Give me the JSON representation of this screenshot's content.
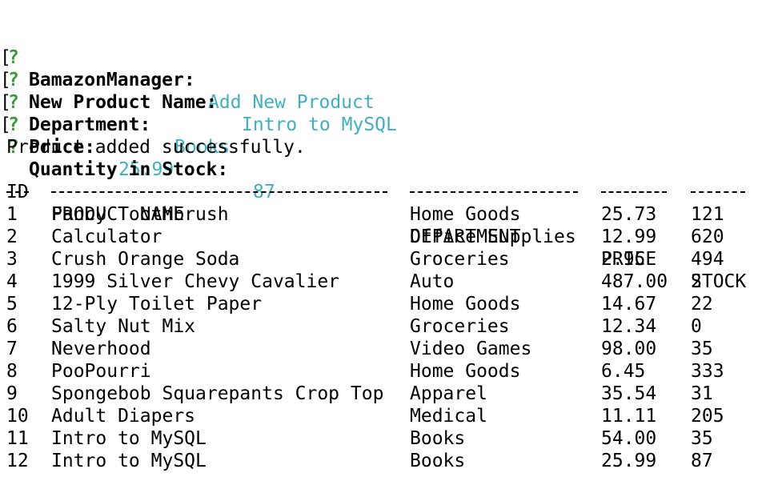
{
  "prompts": [
    {
      "bracket": "",
      "qmark": "?",
      "label": "BamazonManager:",
      "answer": "Add New Product"
    },
    {
      "bracket": "[",
      "qmark": "?",
      "label": "New Product Name:",
      "answer": "Intro to MySQL"
    },
    {
      "bracket": "[",
      "qmark": "?",
      "label": "Department:",
      "answer": "Books"
    },
    {
      "bracket": "[",
      "qmark": "?",
      "label": "Price:",
      "answer": "25.99"
    },
    {
      "bracket": "[",
      "qmark": "?",
      "label": "Quantity in Stock:",
      "answer": "87"
    }
  ],
  "status_message": "Product added successfully.",
  "table": {
    "headers": [
      "ID",
      "PRODUCT NAME",
      "DEPARTMENT",
      "PRICE",
      "STOCK"
    ],
    "separators": [
      "--",
      "------------------------------",
      "---------------",
      "------",
      "-----"
    ],
    "rows": [
      [
        "1",
        "Fancy Toothbrush",
        "Home Goods",
        "25.73",
        "121"
      ],
      [
        "2",
        "Calculator",
        "Office Supplies",
        "12.99",
        "620"
      ],
      [
        "3",
        "Crush Orange Soda",
        "Groceries",
        "2.95",
        "494"
      ],
      [
        "4",
        "1999 Silver Chevy Cavalier",
        "Auto",
        "487.00",
        "2"
      ],
      [
        "5",
        "12-Ply Toilet Paper",
        "Home Goods",
        "14.67",
        "22"
      ],
      [
        "6",
        "Salty Nut Mix",
        "Groceries",
        "12.34",
        "0"
      ],
      [
        "7",
        "Neverhood",
        "Video Games",
        "98.00",
        "35"
      ],
      [
        "8",
        "PooPourri",
        "Home Goods",
        "6.45",
        "333"
      ],
      [
        "9",
        "Spongebob Squarepants Crop Top",
        "Apparel",
        "35.54",
        "31"
      ],
      [
        "10",
        "Adult Diapers",
        "Medical",
        "11.11",
        "205"
      ],
      [
        "11",
        "Intro to MySQL",
        "Books",
        "54.00",
        "35"
      ],
      [
        "12",
        "Intro to MySQL",
        "Books",
        "25.99",
        "87"
      ]
    ]
  },
  "colors": {
    "prompt_qmark": "#3a9a3a",
    "answer_text": "#3fb0c0",
    "text": "#000000",
    "background": "#ffffff"
  }
}
